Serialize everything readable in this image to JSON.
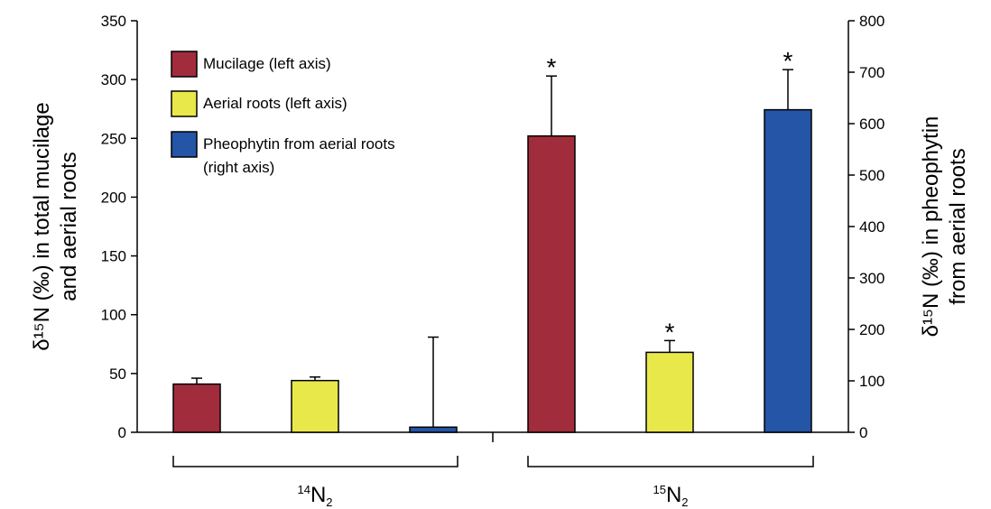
{
  "chart_data": {
    "type": "bar",
    "title": "",
    "ylabel_left_lines": [
      "δ¹⁵N (‰) in total mucilage",
      "and aerial roots"
    ],
    "ylabel_right_lines": [
      "δ¹⁵N (‰) in pheophytin",
      "from aerial roots"
    ],
    "ylim_left": [
      0,
      350
    ],
    "yticks_left": [
      0,
      50,
      100,
      150,
      200,
      250,
      300,
      350
    ],
    "ylim_right": [
      0,
      800
    ],
    "yticks_right": [
      0,
      100,
      200,
      300,
      400,
      500,
      600,
      700,
      800
    ],
    "groups": [
      {
        "label_base": "N",
        "label_sup": "14",
        "label_sub": "2"
      },
      {
        "label_base": "N",
        "label_sup": "15",
        "label_sub": "2"
      }
    ],
    "series": [
      {
        "name": "Mucilage (left axis)",
        "axis": "left",
        "color": "#a12d3c",
        "values": [
          41,
          252
        ],
        "errors": [
          5,
          51
        ],
        "significant": [
          false,
          true
        ]
      },
      {
        "name": "Aerial roots (left axis)",
        "axis": "left",
        "color": "#e9e84a",
        "values": [
          44,
          68
        ],
        "errors": [
          3,
          10
        ],
        "significant": [
          false,
          true
        ]
      },
      {
        "name": "Pheophytin from aerial roots (right axis)",
        "axis": "right",
        "color": "#2455a6",
        "values": [
          10,
          627
        ],
        "errors": [
          175,
          78
        ],
        "significant": [
          false,
          true
        ]
      }
    ],
    "legend": {
      "position": "top-left",
      "entries": [
        {
          "lines": [
            "Mucilage (left axis)"
          ]
        },
        {
          "lines": [
            "Aerial roots (left axis)"
          ]
        },
        {
          "lines": [
            "Pheophytin from aerial roots",
            "(right axis)"
          ]
        }
      ]
    },
    "significance_marker": "*",
    "grid": false
  }
}
